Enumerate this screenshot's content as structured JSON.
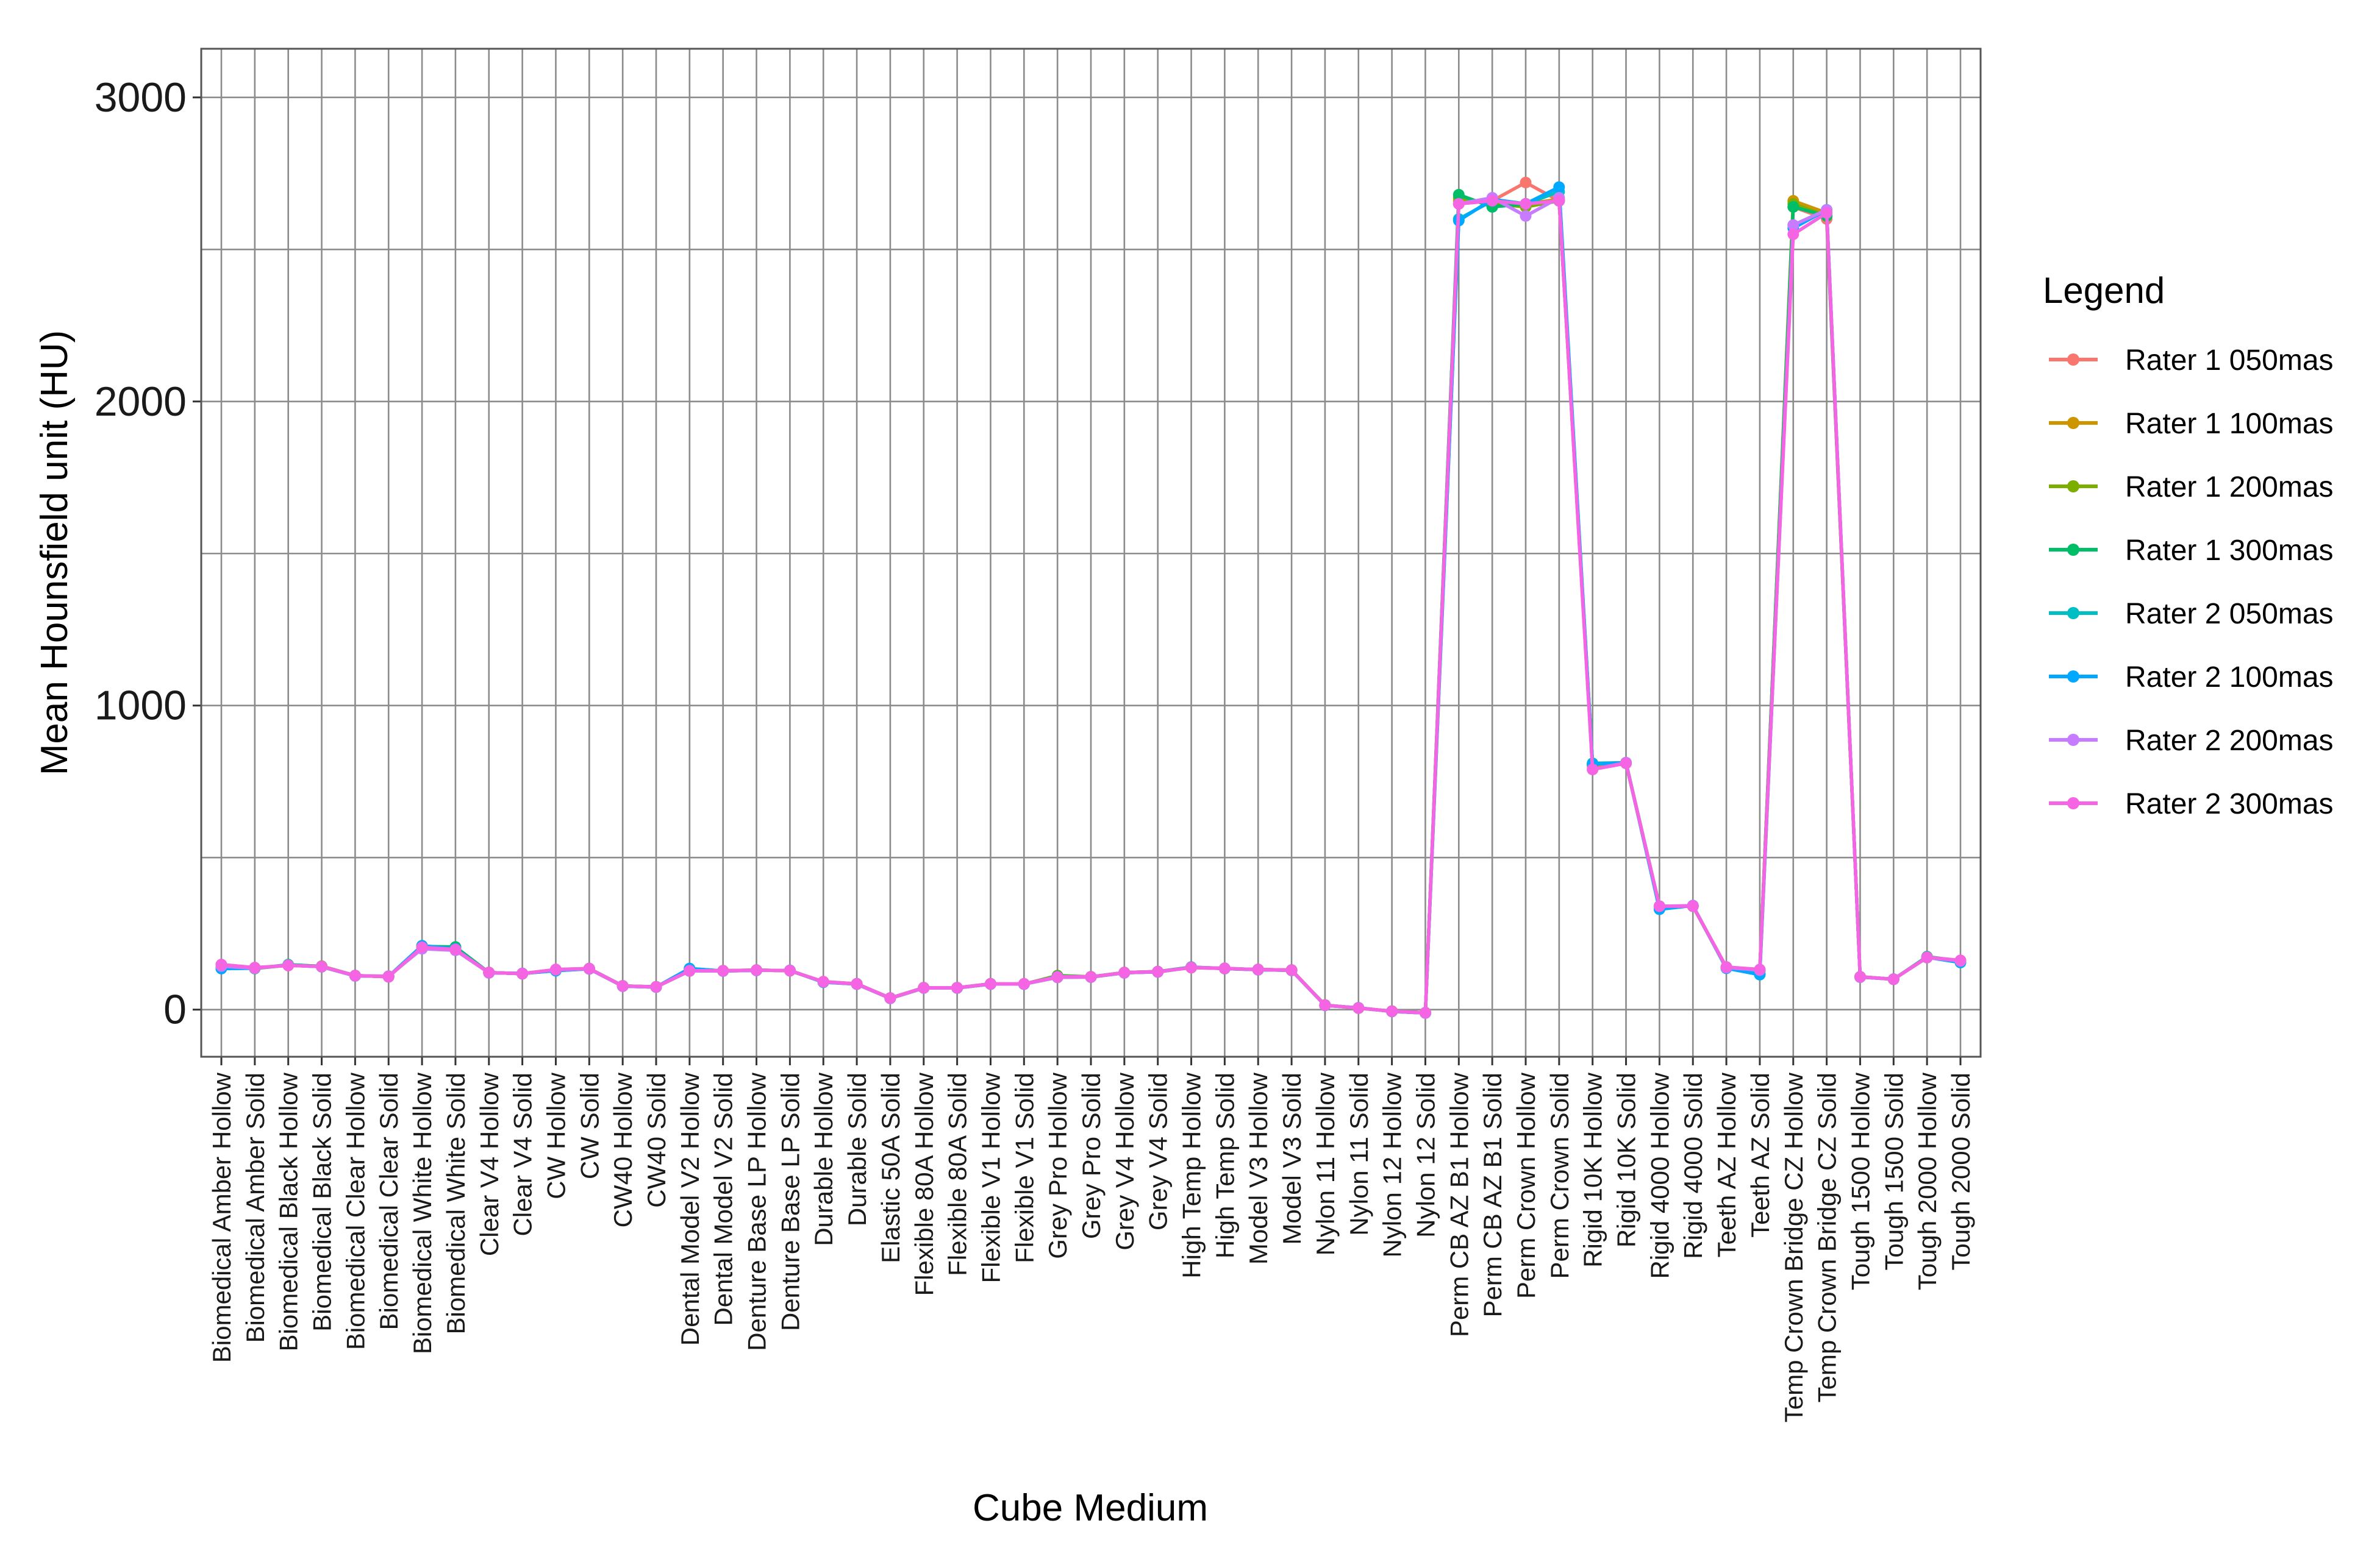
{
  "chart_data": {
    "type": "line",
    "xlabel": "Cube Medium",
    "ylabel": "Mean Hounsfield unit (HU)",
    "ylim": [
      -155,
      3160
    ],
    "yticks": [
      0,
      1000,
      2000,
      3000
    ],
    "yticks_labels": [
      "0",
      "1000",
      "2000",
      "3000"
    ],
    "grid": true,
    "legend_title": "Legend",
    "legend_position": "right",
    "categories": [
      "Biomedical Amber Hollow",
      "Biomedical Amber Solid",
      "Biomedical Black Hollow",
      "Biomedical Black Solid",
      "Biomedical Clear Hollow",
      "Biomedical Clear Solid",
      "Biomedical White Hollow",
      "Biomedical White Solid",
      "Clear V4 Hollow",
      "Clear V4 Solid",
      "CW Hollow",
      "CW Solid",
      "CW40 Hollow",
      "CW40 Solid",
      "Dental Model V2 Hollow",
      "Dental Model V2 Solid",
      "Denture Base LP Hollow",
      "Denture Base LP Solid",
      "Durable Hollow",
      "Durable Solid",
      "Elastic 50A Solid",
      "Flexible 80A Hollow",
      "Flexible 80A Solid",
      "Flexible V1 Hollow",
      "Flexible V1 Solid",
      "Grey Pro Hollow",
      "Grey Pro Solid",
      "Grey V4 Hollow",
      "Grey V4 Solid",
      "High Temp Hollow",
      "High Temp Solid",
      "Model V3 Hollow",
      "Model V3 Solid",
      "Nylon 11 Hollow",
      "Nylon 11 Solid",
      "Nylon 12 Hollow",
      "Nylon 12 Solid",
      "Perm CB AZ B1 Hollow",
      "Perm CB AZ B1 Solid",
      "Perm Crown Hollow",
      "Perm Crown Solid",
      "Rigid 10K Hollow",
      "Rigid 10K Solid",
      "Rigid 4000 Hollow",
      "Rigid 4000 Solid",
      "Teeth AZ Hollow",
      "Teeth AZ Solid",
      "Temp Crown Bridge CZ Hollow",
      "Temp Crown Bridge CZ Solid",
      "Tough 1500 Hollow",
      "Tough 1500 Solid",
      "Tough 2000 Hollow",
      "Tough 2000 Solid"
    ],
    "series": [
      {
        "name": "Rater 1 050mas",
        "color": "#F8766D",
        "values": [
          148,
          138,
          145,
          142,
          112,
          108,
          205,
          200,
          122,
          118,
          132,
          135,
          78,
          75,
          128,
          128,
          130,
          128,
          92,
          85,
          38,
          72,
          72,
          85,
          85,
          108,
          108,
          122,
          125,
          138,
          135,
          132,
          130,
          15,
          5,
          -5,
          -10,
          2650,
          2660,
          2720,
          2660,
          800,
          810,
          340,
          340,
          140,
          130,
          2640,
          2600,
          108,
          100,
          172,
          160
        ]
      },
      {
        "name": "Rater 1 100mas",
        "color": "#CD9600",
        "values": [
          142,
          136,
          147,
          141,
          111,
          110,
          205,
          202,
          121,
          119,
          131,
          134,
          77,
          74,
          127,
          127,
          129,
          129,
          91,
          84,
          37,
          71,
          71,
          84,
          84,
          106,
          107,
          121,
          124,
          139,
          136,
          131,
          129,
          14,
          6,
          -6,
          -11,
          2660,
          2655,
          2650,
          2665,
          805,
          812,
          338,
          342,
          138,
          128,
          2660,
          2620,
          107,
          100,
          171,
          160
        ]
      },
      {
        "name": "Rater 1 200mas",
        "color": "#7CAE00",
        "values": [
          140,
          135,
          146,
          143,
          112,
          109,
          206,
          205,
          122,
          118,
          130,
          135,
          78,
          75,
          129,
          128,
          130,
          128,
          91,
          85,
          38,
          72,
          71,
          85,
          84,
          112,
          108,
          122,
          125,
          139,
          135,
          132,
          130,
          15,
          5,
          -5,
          -10,
          2670,
          2650,
          2640,
          2660,
          808,
          810,
          340,
          340,
          138,
          130,
          2650,
          2610,
          108,
          100,
          172,
          160
        ]
      },
      {
        "name": "Rater 1 300mas",
        "color": "#00BE67",
        "values": [
          140,
          135,
          148,
          142,
          112,
          108,
          208,
          206,
          122,
          118,
          130,
          135,
          78,
          75,
          130,
          127,
          130,
          128,
          91,
          85,
          38,
          72,
          72,
          85,
          84,
          110,
          108,
          122,
          125,
          140,
          135,
          132,
          130,
          15,
          5,
          -5,
          -10,
          2680,
          2640,
          2650,
          2660,
          810,
          812,
          340,
          340,
          138,
          128,
          2640,
          2610,
          108,
          100,
          174,
          160
        ]
      },
      {
        "name": "Rater 2 050mas",
        "color": "#00BFC4",
        "values": [
          135,
          136,
          146,
          141,
          111,
          109,
          210,
          200,
          121,
          119,
          128,
          134,
          77,
          74,
          135,
          127,
          129,
          129,
          90,
          84,
          37,
          71,
          71,
          84,
          84,
          107,
          107,
          121,
          124,
          139,
          135,
          131,
          129,
          14,
          6,
          -6,
          -11,
          2600,
          2660,
          2650,
          2690,
          808,
          812,
          335,
          342,
          136,
          118,
          2580,
          2630,
          107,
          100,
          172,
          155
        ]
      },
      {
        "name": "Rater 2 100mas",
        "color": "#00A9FF",
        "values": [
          135,
          136,
          146,
          141,
          111,
          109,
          210,
          200,
          121,
          119,
          128,
          134,
          77,
          74,
          135,
          127,
          129,
          129,
          90,
          84,
          37,
          71,
          71,
          84,
          84,
          107,
          107,
          121,
          124,
          139,
          135,
          131,
          129,
          14,
          6,
          -6,
          -11,
          2595,
          2665,
          2650,
          2705,
          808,
          812,
          330,
          342,
          136,
          115,
          2570,
          2630,
          107,
          100,
          172,
          155
        ]
      },
      {
        "name": "Rater 2 200mas",
        "color": "#C77CFF",
        "values": [
          143,
          136,
          146,
          141,
          111,
          110,
          200,
          195,
          121,
          119,
          131,
          134,
          77,
          74,
          127,
          127,
          129,
          129,
          91,
          84,
          37,
          71,
          71,
          84,
          84,
          106,
          107,
          121,
          124,
          139,
          136,
          131,
          129,
          14,
          6,
          -6,
          -11,
          2650,
          2670,
          2610,
          2670,
          790,
          812,
          340,
          342,
          138,
          130,
          2580,
          2630,
          107,
          100,
          171,
          160
        ]
      },
      {
        "name": "Rater 2 300mas",
        "color": "#F564E3",
        "values": [
          148,
          138,
          145,
          142,
          112,
          108,
          205,
          198,
          122,
          118,
          132,
          135,
          78,
          75,
          128,
          128,
          130,
          128,
          92,
          85,
          38,
          72,
          72,
          85,
          85,
          108,
          108,
          122,
          125,
          138,
          135,
          132,
          130,
          15,
          5,
          -5,
          -10,
          2650,
          2660,
          2650,
          2660,
          790,
          810,
          340,
          340,
          140,
          132,
          2550,
          2620,
          108,
          100,
          172,
          162
        ]
      }
    ]
  }
}
